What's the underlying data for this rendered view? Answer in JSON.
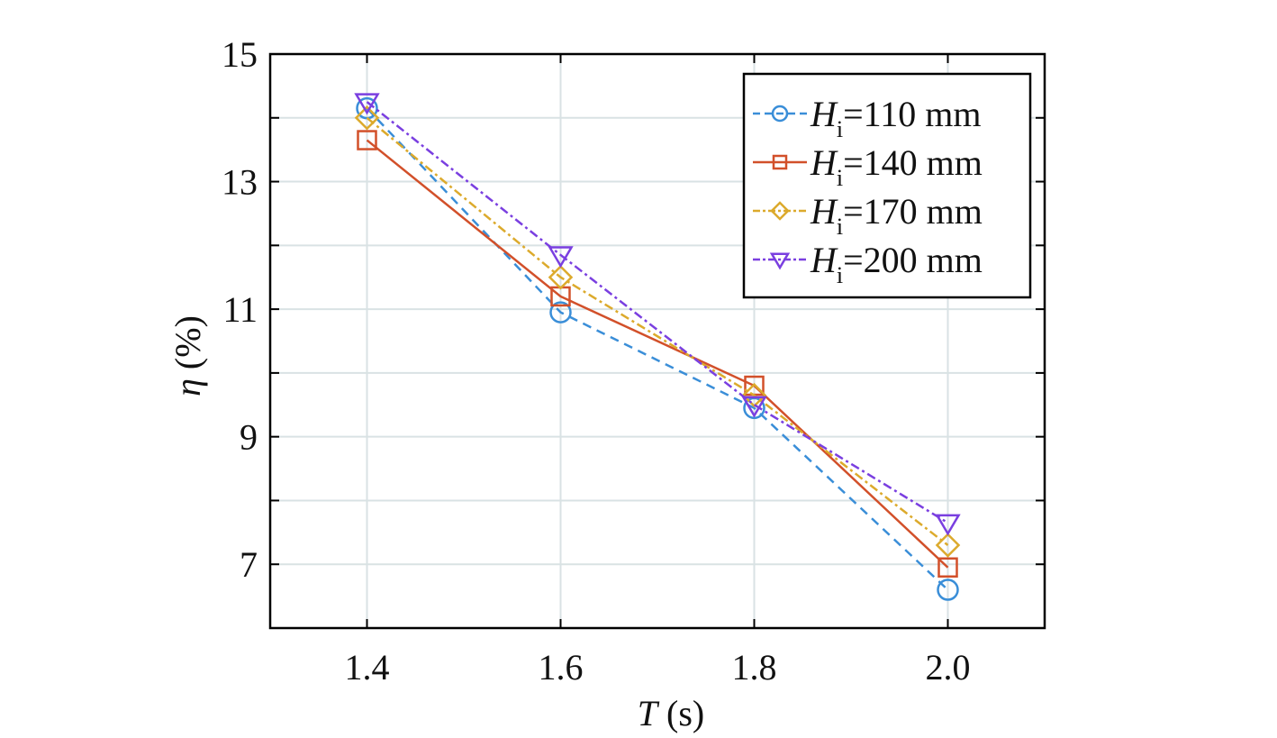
{
  "chart_data": {
    "type": "line",
    "x": [
      1.4,
      1.6,
      1.8,
      2.0
    ],
    "xlim": [
      1.3,
      2.1
    ],
    "ylim": [
      6.0,
      15.0
    ],
    "xticks": [
      "1.4",
      "1.6",
      "1.8",
      "2.0"
    ],
    "yticks": [
      "7",
      "9",
      "11",
      "13",
      "15"
    ],
    "xlabel": {
      "symbol": "T",
      "unit": " (s)"
    },
    "ylabel": {
      "symbol": "η",
      "unit": " (%)"
    },
    "grid": true,
    "legend_position": "top-right",
    "series": [
      {
        "name": "=110 mm",
        "symbol": "H",
        "subscript": "i",
        "values": [
          14.15,
          10.95,
          9.45,
          6.6
        ],
        "color": "#3a8ed8",
        "dash": "10,7",
        "marker": "circle"
      },
      {
        "name": "=140 mm",
        "symbol": "H",
        "subscript": "i",
        "values": [
          13.65,
          11.2,
          9.8,
          6.95
        ],
        "color": "#d2502a",
        "dash": "",
        "marker": "square"
      },
      {
        "name": "=170 mm",
        "symbol": "H",
        "subscript": "i",
        "values": [
          14.0,
          11.5,
          9.65,
          7.3
        ],
        "color": "#dcaa2c",
        "dash": "10,4,3,4",
        "marker": "diamond"
      },
      {
        "name": "=200 mm",
        "symbol": "H",
        "subscript": "i",
        "values": [
          14.25,
          11.85,
          9.5,
          7.65
        ],
        "color": "#7a3fe0",
        "dash": "10,4,3,4",
        "marker": "triangle-down"
      }
    ]
  }
}
